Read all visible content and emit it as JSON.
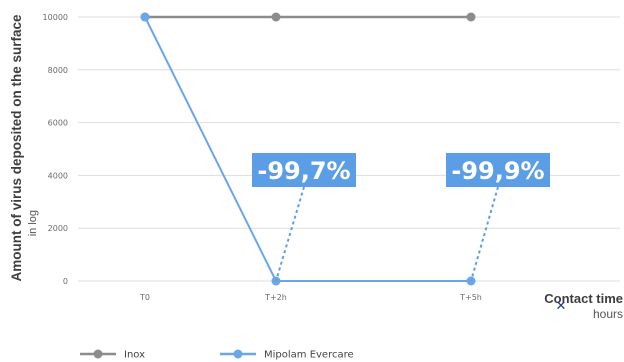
{
  "chart_data": {
    "type": "line",
    "categories": [
      "T0",
      "T+2h",
      "T+5h"
    ],
    "series": [
      {
        "name": "Inox",
        "values": [
          10000,
          10000,
          10000
        ],
        "color": "#8c8c8c"
      },
      {
        "name": "Mipolam Evercare",
        "values": [
          10000,
          0,
          0
        ],
        "color": "#6aa6e8"
      }
    ],
    "yticks": [
      0,
      2000,
      4000,
      6000,
      8000,
      10000
    ],
    "ylim": [
      0,
      10000
    ],
    "ylabel": "Amount of virus deposited on the surface",
    "ylabel_sub": "in log",
    "xlabel": "Contact time",
    "xlabel_sub": "hours",
    "grid": true,
    "legend_position": "bottom-left",
    "annotations": [
      {
        "text": "-99,7%",
        "attached_to": "T+2h",
        "color": "#5b9ee6"
      },
      {
        "text": "-99,9%",
        "attached_to": "T+5h",
        "color": "#5b9ee6"
      }
    ]
  },
  "marker_symbol": "✕"
}
